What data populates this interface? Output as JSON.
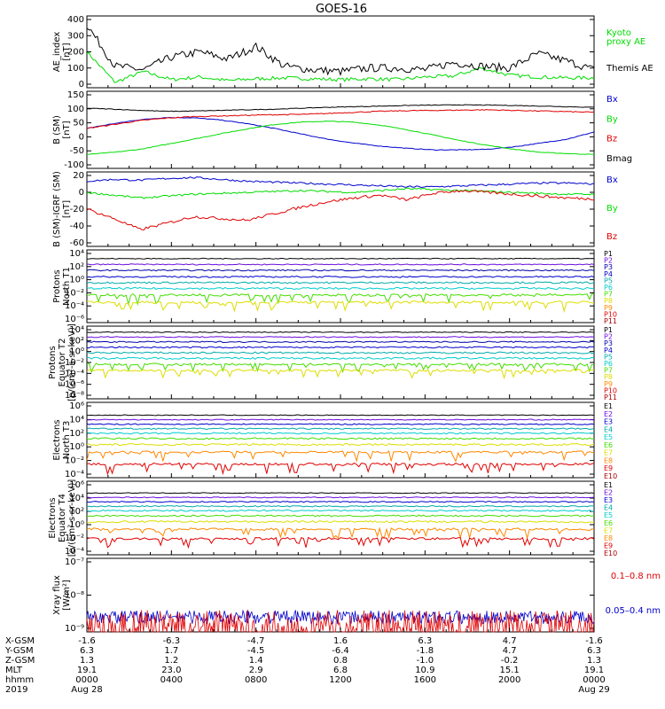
{
  "title": "GOES-16",
  "colors": {
    "black": "#000000",
    "red": "#e00000",
    "green": "#00dd00",
    "blue": "#0000cc",
    "purple": "#6a0ddd",
    "navy": "#0000aa",
    "teal": "#00aaaa",
    "cyan": "#00cccc",
    "lime": "#44dd00",
    "yellow": "#dddd00",
    "orange": "#ff8800",
    "darkred": "#aa0000"
  },
  "panels": [
    {
      "id": "ae",
      "ylabel": [
        "AE_index",
        "[nT]"
      ],
      "ticks": [
        "400",
        "300",
        "200",
        "100",
        "0"
      ],
      "legend": [
        {
          "text": "Kyoto",
          "color": "#00dd00"
        },
        {
          "text": "proxy AE",
          "color": "#00dd00"
        },
        {
          "text": "Themis AE",
          "color": "#000000"
        }
      ]
    },
    {
      "id": "bsm",
      "ylabel": [
        "B (SM)",
        "[nT]"
      ],
      "ticks": [
        "150",
        "100",
        "50",
        "0",
        "-50",
        "-100"
      ],
      "legend": [
        {
          "text": "Bx",
          "color": "#0000cc"
        },
        {
          "text": "By",
          "color": "#00dd00"
        },
        {
          "text": "Bz",
          "color": "#e00000"
        },
        {
          "text": "Bmag",
          "color": "#000000"
        }
      ]
    },
    {
      "id": "bigrf",
      "ylabel": [
        "B (SM)-IGRF (SM)",
        "[nT]"
      ],
      "ticks": [
        "20",
        "0",
        "-20",
        "-40",
        "-60"
      ],
      "legend": [
        {
          "text": "Bx",
          "color": "#0000cc"
        },
        {
          "text": "By",
          "color": "#00dd00"
        },
        {
          "text": "Bz",
          "color": "#e00000"
        }
      ]
    },
    {
      "id": "pn",
      "ylabel": [
        "Protons",
        "North T1"
      ],
      "ticks": [
        "10⁴",
        "10²",
        "10⁰",
        "10⁻²",
        "10⁻⁴",
        "10⁻⁶"
      ],
      "legend": [
        {
          "text": "P1",
          "color": "#000000"
        },
        {
          "text": "P2",
          "color": "#6a0ddd"
        },
        {
          "text": "P3",
          "color": "#0000aa"
        },
        {
          "text": "P4",
          "color": "#0000cc"
        },
        {
          "text": "P5",
          "color": "#00aaaa"
        },
        {
          "text": "P6",
          "color": "#00cccc"
        },
        {
          "text": "P7",
          "color": "#44dd00"
        },
        {
          "text": "P8",
          "color": "#dddd00"
        },
        {
          "text": "P9",
          "color": "#ff8800"
        },
        {
          "text": "P10",
          "color": "#e00000"
        },
        {
          "text": "P11",
          "color": "#aa0000"
        }
      ]
    },
    {
      "id": "pe",
      "ylabel": [
        "Protons",
        "Equator T2",
        "[p/(cm²-s-sr-keV)]"
      ],
      "ticks": [
        "10⁴",
        "10²",
        "10⁰",
        "10⁻²",
        "10⁻⁴",
        "10⁻⁶",
        "10⁻⁸"
      ],
      "legend": [
        {
          "text": "P1",
          "color": "#000000"
        },
        {
          "text": "P2",
          "color": "#6a0ddd"
        },
        {
          "text": "P3",
          "color": "#0000aa"
        },
        {
          "text": "P4",
          "color": "#0000cc"
        },
        {
          "text": "P5",
          "color": "#00aaaa"
        },
        {
          "text": "P6",
          "color": "#00cccc"
        },
        {
          "text": "P7",
          "color": "#44dd00"
        },
        {
          "text": "P8",
          "color": "#dddd00"
        },
        {
          "text": "P9",
          "color": "#ff8800"
        },
        {
          "text": "P10",
          "color": "#e00000"
        },
        {
          "text": "P11",
          "color": "#aa0000"
        }
      ]
    },
    {
      "id": "en",
      "ylabel": [
        "Electrons",
        "North T3"
      ],
      "ticks": [
        "10⁶",
        "10⁴",
        "10²",
        "10⁰",
        "10⁻²",
        "10⁻⁴"
      ],
      "legend": [
        {
          "text": "E1",
          "color": "#000000"
        },
        {
          "text": "E2",
          "color": "#6a0ddd"
        },
        {
          "text": "E3",
          "color": "#0000cc"
        },
        {
          "text": "E4",
          "color": "#00aaaa"
        },
        {
          "text": "E5",
          "color": "#00cccc"
        },
        {
          "text": "E6",
          "color": "#44dd00"
        },
        {
          "text": "E7",
          "color": "#dddd00"
        },
        {
          "text": "E8",
          "color": "#ff8800"
        },
        {
          "text": "E9",
          "color": "#e00000"
        },
        {
          "text": "E10",
          "color": "#aa0000"
        }
      ]
    },
    {
      "id": "ee",
      "ylabel": [
        "Electrons",
        "Equator T4",
        "[e/(cm²-s-sr-keV)]"
      ],
      "ticks": [
        "10⁶",
        "10⁴",
        "10²",
        "10⁰",
        "10⁻²",
        "10⁻⁴"
      ],
      "legend": [
        {
          "text": "E1",
          "color": "#000000"
        },
        {
          "text": "E2",
          "color": "#6a0ddd"
        },
        {
          "text": "E3",
          "color": "#0000cc"
        },
        {
          "text": "E4",
          "color": "#00aaaa"
        },
        {
          "text": "E5",
          "color": "#00cccc"
        },
        {
          "text": "E6",
          "color": "#44dd00"
        },
        {
          "text": "E7",
          "color": "#dddd00"
        },
        {
          "text": "E8",
          "color": "#ff8800"
        },
        {
          "text": "E9",
          "color": "#e00000"
        },
        {
          "text": "E10",
          "color": "#aa0000"
        }
      ]
    },
    {
      "id": "xray",
      "ylabel": [
        "Xray flux",
        "[W/m²]"
      ],
      "ticks": [
        "10⁻⁷",
        "10⁻⁸",
        "10⁻⁹"
      ],
      "legend": [
        {
          "text": "0.1–0.8 nm",
          "color": "#e00000"
        },
        {
          "text": "0.05–0.4 nm",
          "color": "#0000cc"
        }
      ]
    }
  ],
  "footer": {
    "rows": [
      {
        "label": "X-GSM",
        "values": [
          "-1.6",
          "-6.3",
          "-4.7",
          "1.6",
          "6.3",
          "4.7",
          "-1.6"
        ]
      },
      {
        "label": "Y-GSM",
        "values": [
          "6.3",
          "1.7",
          "-4.5",
          "-6.4",
          "-1.8",
          "4.7",
          "6.3"
        ]
      },
      {
        "label": "Z-GSM",
        "values": [
          "1.3",
          "1.2",
          "1.4",
          "0.8",
          "-1.0",
          "-0.2",
          "1.3"
        ]
      },
      {
        "label": "MLT",
        "values": [
          "19.1",
          "23.0",
          "2.9",
          "6.8",
          "10.9",
          "15.1",
          "19.1"
        ]
      },
      {
        "label": "hhmm",
        "values": [
          "0000",
          "0400",
          "0800",
          "1200",
          "1600",
          "2000",
          "0000"
        ]
      },
      {
        "label": "2019",
        "values": [
          "Aug 28",
          "",
          "",
          "",
          "",
          "",
          "Aug 29"
        ]
      }
    ]
  },
  "chart_data": {
    "type": "line",
    "title": "GOES-16",
    "x": [
      "0000",
      "0400",
      "0800",
      "1200",
      "1600",
      "2000",
      "0000"
    ],
    "ae": {
      "ylim": [
        0,
        400
      ],
      "series": [
        {
          "name": "Kyoto proxy AE",
          "values": [
            200,
            30,
            90,
            45,
            60,
            40,
            50,
            55,
            50,
            45,
            50,
            45,
            60,
            65,
            110,
            70,
            60,
            55,
            55
          ]
        },
        {
          "name": "Themis AE",
          "values": [
            350,
            120,
            100,
            170,
            200,
            160,
            230,
            120,
            100,
            90,
            110,
            110,
            100,
            140,
            120,
            110,
            190,
            150,
            100
          ]
        }
      ]
    },
    "bsm": {
      "ylim": [
        -100,
        150
      ],
      "series": [
        {
          "name": "Bx",
          "values": [
            30,
            45,
            58,
            65,
            64,
            57,
            45,
            30,
            12,
            -5,
            -18,
            -28,
            -35,
            -40,
            -40,
            -38,
            -30,
            -18,
            -5,
            18
          ]
        },
        {
          "name": "By",
          "values": [
            -55,
            -48,
            -38,
            -22,
            -5,
            12,
            28,
            42,
            50,
            53,
            50,
            40,
            25,
            8,
            -10,
            -25,
            -38,
            -48,
            -52,
            -55
          ]
        },
        {
          "name": "Bz",
          "values": [
            30,
            42,
            55,
            63,
            68,
            70,
            72,
            74,
            75,
            78,
            82,
            85,
            87,
            88,
            89,
            90,
            88,
            86,
            84,
            82
          ]
        },
        {
          "name": "Bmag",
          "values": [
            95,
            92,
            88,
            85,
            86,
            88,
            90,
            92,
            95,
            98,
            100,
            102,
            104,
            105,
            106,
            105,
            104,
            102,
            100,
            98
          ]
        }
      ]
    },
    "bigrf": {
      "ylim": [
        -60,
        20
      ],
      "series": [
        {
          "name": "Bx",
          "values": [
            10,
            12,
            11,
            13,
            14,
            12,
            10,
            9,
            8,
            7,
            6,
            5,
            4,
            4,
            5,
            6,
            7,
            8,
            8,
            7
          ]
        },
        {
          "name": "By",
          "values": [
            -2,
            -5,
            -8,
            -6,
            -4,
            -3,
            -2,
            -1,
            0,
            -1,
            -2,
            0,
            2,
            1,
            0,
            -1,
            -2,
            -3,
            -4,
            -4
          ]
        },
        {
          "name": "Bz",
          "values": [
            -20,
            -30,
            -42,
            -35,
            -28,
            -30,
            -32,
            -25,
            -18,
            -12,
            -8,
            -5,
            -10,
            -3,
            0,
            -2,
            -4,
            -6,
            -8,
            -9
          ]
        }
      ]
    },
    "protons_north": {
      "scale": "log",
      "series": [
        {
          "name": "P1",
          "level": 2.8
        },
        {
          "name": "P2",
          "level": 2.0
        },
        {
          "name": "P3",
          "level": 1.2
        },
        {
          "name": "P4",
          "level": 0.3
        },
        {
          "name": "P5",
          "level": -0.5
        },
        {
          "name": "P6",
          "level": -1.3
        },
        {
          "name": "P7",
          "level": -2.2
        },
        {
          "name": "P8",
          "level": -3.2
        }
      ]
    },
    "protons_equator": {
      "scale": "log",
      "series": [
        {
          "name": "P1",
          "level": 3.0
        },
        {
          "name": "P2",
          "level": 2.2
        },
        {
          "name": "P3",
          "level": 1.4
        },
        {
          "name": "P4",
          "level": 0.5
        },
        {
          "name": "P5",
          "level": -0.4
        },
        {
          "name": "P6",
          "level": -1.3
        },
        {
          "name": "P7",
          "level": -2.3
        },
        {
          "name": "P8",
          "level": -3.3
        }
      ]
    },
    "electrons_north": {
      "scale": "log",
      "series": [
        {
          "name": "E1",
          "level": 4.3
        },
        {
          "name": "E2",
          "level": 3.7
        },
        {
          "name": "E3",
          "level": 3.1
        },
        {
          "name": "E4",
          "level": 2.5
        },
        {
          "name": "E5",
          "level": 1.9
        },
        {
          "name": "E6",
          "level": 1.2
        },
        {
          "name": "E7",
          "level": 0.4
        },
        {
          "name": "E8",
          "level": -0.6
        },
        {
          "name": "E9",
          "level": -2.2
        }
      ]
    },
    "electrons_equator": {
      "scale": "log",
      "series": [
        {
          "name": "E1",
          "level": 4.4
        },
        {
          "name": "E2",
          "level": 3.8
        },
        {
          "name": "E3",
          "level": 3.2
        },
        {
          "name": "E4",
          "level": 2.6
        },
        {
          "name": "E5",
          "level": 2.0
        },
        {
          "name": "E6",
          "level": 1.3
        },
        {
          "name": "E7",
          "level": 0.5
        },
        {
          "name": "E8",
          "level": -0.5
        },
        {
          "name": "E9",
          "level": -1.8
        }
      ]
    },
    "xray": {
      "scale": "log",
      "series": [
        {
          "name": "0.05–0.4 nm",
          "level": -8.6
        },
        {
          "name": "0.1–0.8 nm",
          "level": -8.9
        }
      ]
    }
  }
}
